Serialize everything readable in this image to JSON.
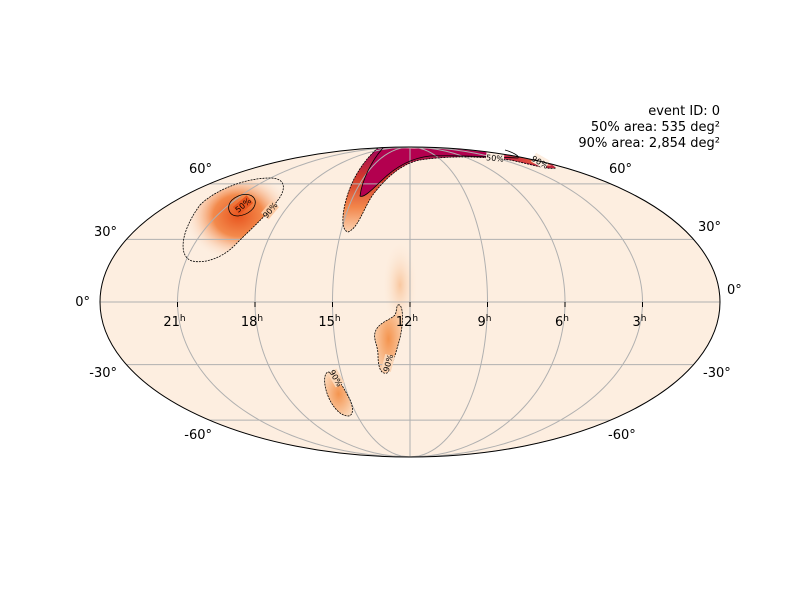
{
  "event": {
    "id_line": "event ID: 0",
    "area50_line": "50% area: 535 deg²",
    "area90_line": "90% area: 2,854 deg²"
  },
  "projection": "mollweide",
  "grid": true,
  "ra_ticks": [
    {
      "hours": 21,
      "label": "21",
      "suffix": "h"
    },
    {
      "hours": 18,
      "label": "18",
      "suffix": "h"
    },
    {
      "hours": 15,
      "label": "15",
      "suffix": "h"
    },
    {
      "hours": 12,
      "label": "12",
      "suffix": "h"
    },
    {
      "hours": 9,
      "label": "9",
      "suffix": "h"
    },
    {
      "hours": 6,
      "label": "6",
      "suffix": "h"
    },
    {
      "hours": 3,
      "label": "3",
      "suffix": "h"
    }
  ],
  "dec_labels": {
    "left": [
      "60°",
      "30°",
      "0°",
      "-30°",
      "-60°"
    ],
    "right": [
      "60°",
      "30°",
      "0°",
      "-30°",
      "-60°"
    ]
  },
  "contour_labels": [
    "50%",
    "90%",
    "50%",
    "90%",
    "90%",
    "90%"
  ],
  "colors": {
    "background": "#fdeee0",
    "low": "#f8b98a",
    "mid": "#f0703a",
    "high": "#c41a4a",
    "peak": "#a0005a",
    "grid": "#b0b0b0"
  }
}
